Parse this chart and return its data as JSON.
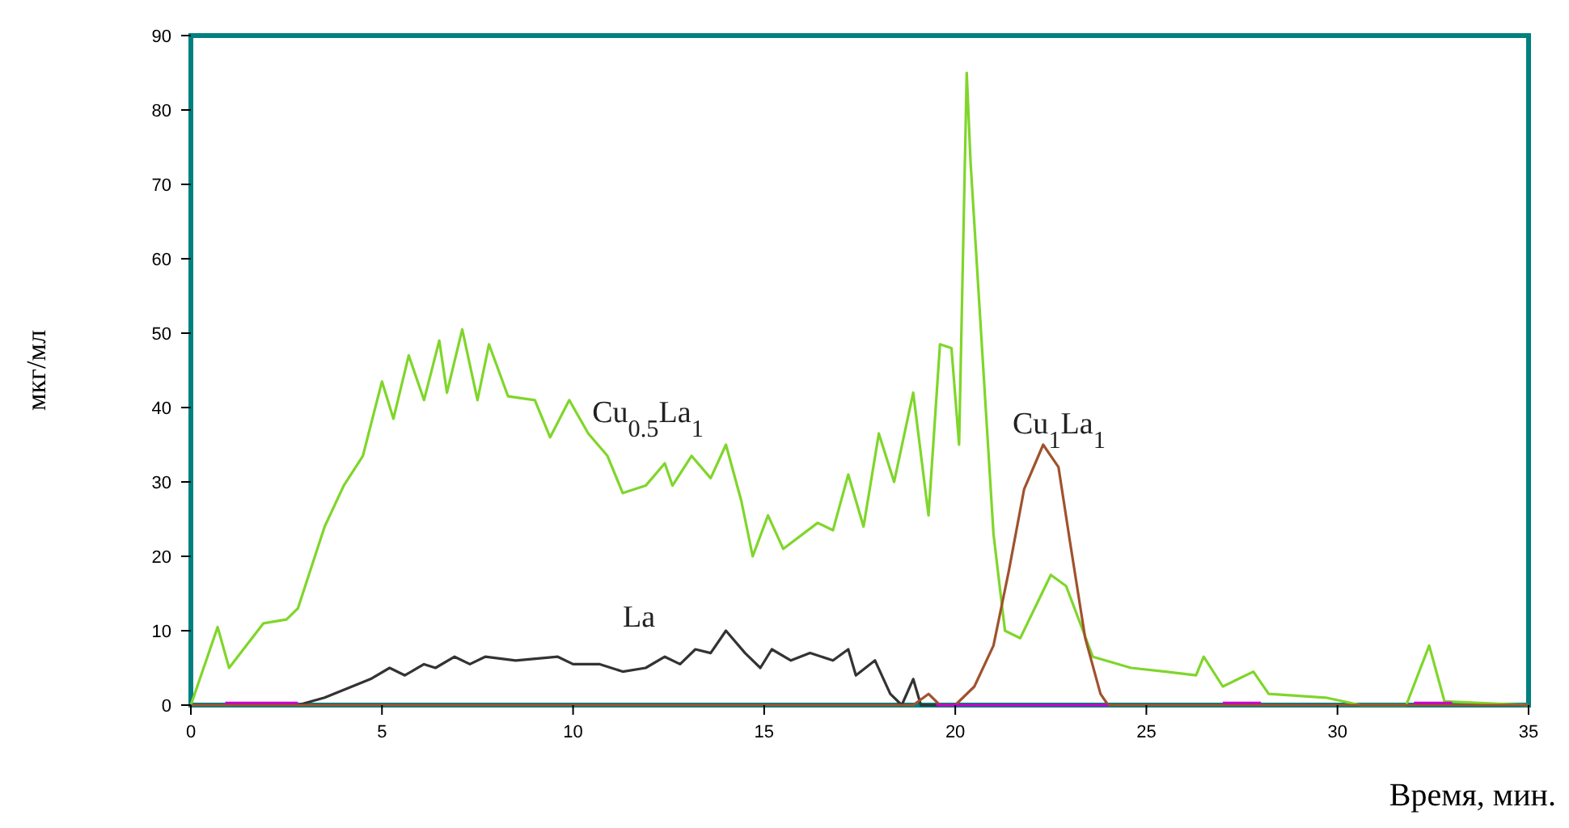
{
  "chart_data": {
    "type": "line",
    "xlabel": "Время, мин.",
    "ylabel": "мкг/мл",
    "xlim": [
      0,
      35
    ],
    "ylim": [
      0,
      90
    ],
    "xticks": [
      0,
      5,
      10,
      15,
      20,
      25,
      30,
      35
    ],
    "yticks": [
      0,
      10,
      20,
      30,
      40,
      50,
      60,
      70,
      80,
      90
    ],
    "grid": false,
    "marker": "none",
    "line_style": "solid",
    "series": [
      {
        "name": "Cu$_{0.5}$La$_{1}$",
        "color": "#7fd62a",
        "x": [
          0,
          0.7,
          1.0,
          1.9,
          2.5,
          2.8,
          3.5,
          4.0,
          4.5,
          5.0,
          5.3,
          5.7,
          6.1,
          6.5,
          6.7,
          7.1,
          7.5,
          7.8,
          8.3,
          9.0,
          9.4,
          9.9,
          10.4,
          10.9,
          11.3,
          11.9,
          12.4,
          12.6,
          13.1,
          13.6,
          14.0,
          14.4,
          14.7,
          15.1,
          15.5,
          16.4,
          16.8,
          17.2,
          17.6,
          18.0,
          18.4,
          18.9,
          19.3,
          19.6,
          19.9,
          20.1,
          20.3,
          20.4,
          21.0,
          21.3,
          21.7,
          22.5,
          22.9,
          23.6,
          24.6,
          25.5,
          26.3,
          26.5,
          27.0,
          27.8,
          28.2,
          29.7,
          30.6,
          31.8,
          32.4,
          32.8,
          35
        ],
        "values": [
          0,
          10.5,
          5,
          11,
          11.5,
          13,
          24,
          29.5,
          33.5,
          43.5,
          38.5,
          47,
          41,
          49,
          42,
          50.5,
          41,
          48.5,
          41.5,
          41,
          36,
          41,
          36.5,
          33.5,
          28.5,
          29.5,
          32.5,
          29.5,
          33.5,
          30.5,
          35,
          27.5,
          20,
          25.5,
          21,
          24.5,
          23.5,
          31,
          24,
          36.5,
          30,
          42,
          25.5,
          48.5,
          48,
          35,
          85,
          73,
          23,
          10,
          9,
          17.5,
          16,
          6.5,
          5,
          4.5,
          4,
          6.5,
          2.5,
          4.5,
          1.5,
          1,
          0,
          0,
          8,
          0.5,
          0
        ]
      },
      {
        "name": "La",
        "color": "#333333",
        "x": [
          2.8,
          3.5,
          4.7,
          5.2,
          5.6,
          6.1,
          6.4,
          6.9,
          7.3,
          7.7,
          8.5,
          9.6,
          10.0,
          10.7,
          11.3,
          11.9,
          12.4,
          12.8,
          13.2,
          13.6,
          14.0,
          14.5,
          14.9,
          15.2,
          15.7,
          16.2,
          16.8,
          17.2,
          17.4,
          17.9,
          18.3,
          18.6,
          18.9,
          19.1,
          19.6
        ],
        "values": [
          0,
          1,
          3.5,
          5,
          4,
          5.5,
          5,
          6.5,
          5.5,
          6.5,
          6,
          6.5,
          5.5,
          5.5,
          4.5,
          5,
          6.5,
          5.5,
          7.5,
          7,
          10,
          7,
          5,
          7.5,
          6,
          7,
          6,
          7.5,
          4,
          6,
          1.5,
          0,
          3.5,
          0,
          0
        ]
      },
      {
        "name": "Cu$_{1}$La$_{1}$",
        "color": "#a0522d",
        "x": [
          0,
          18.9,
          19.3,
          19.6,
          20.0,
          20.5,
          21.0,
          21.4,
          21.8,
          22.3,
          22.7,
          23.0,
          23.4,
          23.8,
          24.0,
          35
        ],
        "values": [
          0,
          0,
          1.5,
          0,
          0,
          2.5,
          8,
          18,
          29,
          35,
          32,
          22,
          9,
          1.5,
          0,
          0
        ]
      },
      {
        "color": "#cc00cc",
        "x": [
          0.9,
          2.8,
          2.9,
          19.5,
          24.0,
          24.1,
          27.0,
          28.0,
          28.1,
          32.0,
          33.0
        ],
        "values": [
          0.3,
          0.3,
          null,
          0,
          0,
          null,
          0.3,
          0.3,
          null,
          0.3,
          0.3
        ]
      }
    ]
  }
}
